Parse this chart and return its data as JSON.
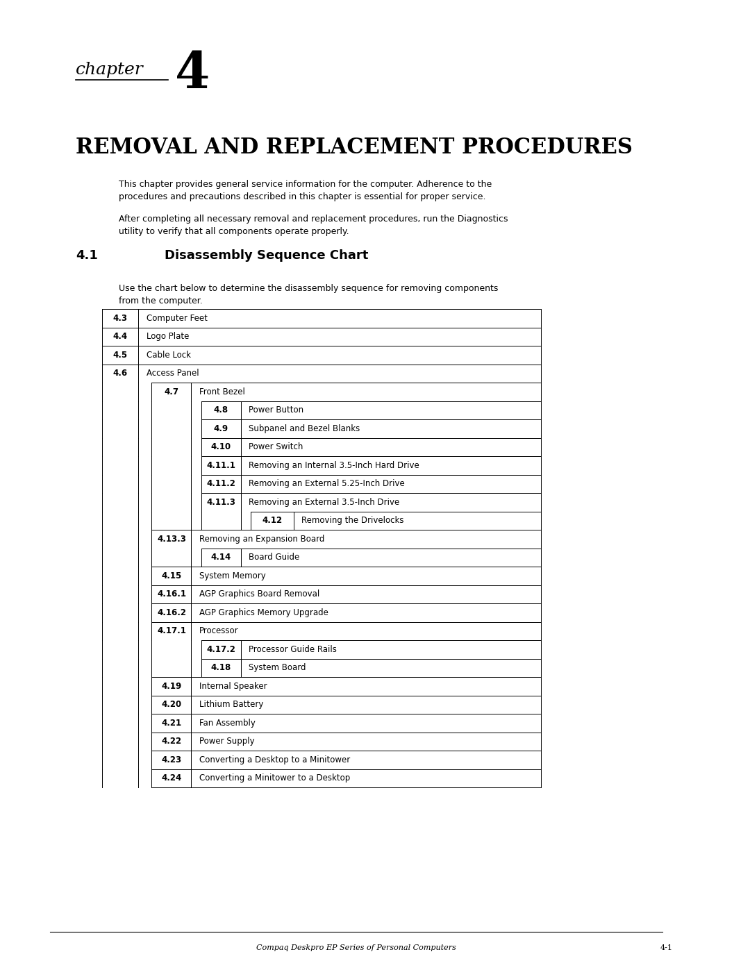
{
  "page_bg": "#ffffff",
  "footer_text": "Compaq Deskpro EP Series of Personal Computers",
  "footer_page": "4-1",
  "chapter_label": "chapter",
  "chapter_number": "4",
  "main_title": "Removal and Replacement Procedures",
  "section_number": "4.1",
  "section_title": "Disassembly Sequence Chart",
  "para1": "This chapter provides general service information for the computer. Adherence to the\nprocedures and precautions described in this chapter is essential for proper service.",
  "para2": "After completing all necessary removal and replacement procedures, run the Diagnostics\nutility to verify that all components operate properly.",
  "chart_intro": "Use the chart below to determine the disassembly sequence for removing components\nfrom the computer.",
  "chart_entries": [
    {
      "level": 0,
      "num": "4.3",
      "text": "Computer Feet"
    },
    {
      "level": 0,
      "num": "4.4",
      "text": "Logo Plate"
    },
    {
      "level": 0,
      "num": "4.5",
      "text": "Cable Lock"
    },
    {
      "level": 0,
      "num": "4.6",
      "text": "Access Panel"
    },
    {
      "level": 1,
      "num": "4.7",
      "text": "Front Bezel"
    },
    {
      "level": 2,
      "num": "4.8",
      "text": "Power Button"
    },
    {
      "level": 2,
      "num": "4.9",
      "text": "Subpanel and Bezel Blanks"
    },
    {
      "level": 2,
      "num": "4.10",
      "text": "Power Switch"
    },
    {
      "level": 2,
      "num": "4.11.1",
      "text": "Removing an Internal 3.5-Inch Hard Drive"
    },
    {
      "level": 2,
      "num": "4.11.2",
      "text": "Removing an External 5.25-Inch Drive"
    },
    {
      "level": 2,
      "num": "4.11.3",
      "text": "Removing an External 3.5-Inch Drive"
    },
    {
      "level": 3,
      "num": "4.12",
      "text": "Removing the Drivelocks"
    },
    {
      "level": 1,
      "num": "4.13.3",
      "text": "Removing an Expansion Board"
    },
    {
      "level": 2,
      "num": "4.14",
      "text": "Board Guide"
    },
    {
      "level": 1,
      "num": "4.15",
      "text": "System Memory"
    },
    {
      "level": 1,
      "num": "4.16.1",
      "text": "AGP Graphics Board Removal"
    },
    {
      "level": 1,
      "num": "4.16.2",
      "text": "AGP Graphics Memory Upgrade"
    },
    {
      "level": 1,
      "num": "4.17.1",
      "text": "Processor"
    },
    {
      "level": 2,
      "num": "4.17.2",
      "text": "Processor Guide Rails"
    },
    {
      "level": 2,
      "num": "4.18",
      "text": "System Board"
    },
    {
      "level": 1,
      "num": "4.19",
      "text": "Internal Speaker"
    },
    {
      "level": 1,
      "num": "4.20",
      "text": "Lithium Battery"
    },
    {
      "level": 1,
      "num": "4.21",
      "text": "Fan Assembly"
    },
    {
      "level": 1,
      "num": "4.22",
      "text": "Power Supply"
    },
    {
      "level": 1,
      "num": "4.23",
      "text": "Converting a Desktop to a Minitower"
    },
    {
      "level": 1,
      "num": "4.24",
      "text": "Converting a Minitower to a Desktop"
    }
  ]
}
